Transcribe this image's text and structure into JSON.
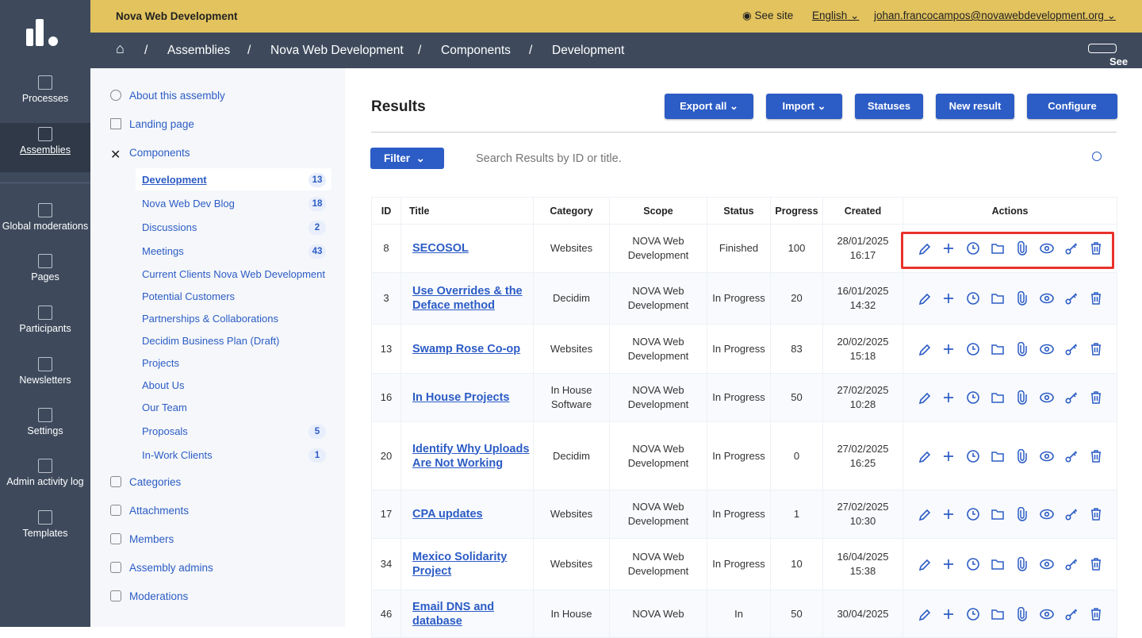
{
  "org": "Nova Web Development",
  "top": {
    "see_site": "See site",
    "language": "English",
    "user": "johan.francocampos@novawebdevelopment.org"
  },
  "breadcrumb": [
    "Assemblies",
    "Nova Web Development",
    "Components",
    "Development"
  ],
  "see_assembly": "See assembly",
  "nav": [
    {
      "label": "Processes"
    },
    {
      "label": "Assemblies",
      "active": true
    },
    {
      "label": "Global moderations"
    },
    {
      "label": "Pages"
    },
    {
      "label": "Participants"
    },
    {
      "label": "Newsletters"
    },
    {
      "label": "Settings"
    },
    {
      "label": "Admin activity log"
    },
    {
      "label": "Templates"
    }
  ],
  "subnav": {
    "about": "About this assembly",
    "landing": "Landing page",
    "components": "Components",
    "component_items": [
      {
        "label": "Development",
        "count": "13",
        "active": true
      },
      {
        "label": "Nova Web Dev Blog",
        "count": "18"
      },
      {
        "label": "Discussions",
        "count": "2"
      },
      {
        "label": "Meetings",
        "count": "43"
      },
      {
        "label": "Current Clients Nova Web Development"
      },
      {
        "label": "Potential Customers"
      },
      {
        "label": "Partnerships & Collaborations"
      },
      {
        "label": "Decidim Business Plan (Draft)"
      },
      {
        "label": "Projects"
      },
      {
        "label": "About Us"
      },
      {
        "label": "Our Team"
      },
      {
        "label": "Proposals",
        "count": "5"
      },
      {
        "label": "In-Work Clients",
        "count": "1"
      }
    ],
    "bottom": [
      "Categories",
      "Attachments",
      "Members",
      "Assembly admins",
      "Moderations"
    ]
  },
  "main": {
    "title": "Results",
    "buttons": [
      "Export all",
      "Import",
      "Statuses",
      "New result",
      "Configure"
    ],
    "filter": "Filter",
    "search_placeholder": "Search Results by ID or title."
  },
  "table": {
    "headers": [
      "ID",
      "Title",
      "Category",
      "Scope",
      "Status",
      "Progress",
      "Created",
      "Actions"
    ],
    "rows": [
      [
        "8",
        "SECOSOL",
        "Websites",
        "NOVA Web Development",
        "Finished",
        "100",
        "28/01/2025 16:17"
      ],
      [
        "3",
        "Use Overrides & the Deface method",
        "Decidim",
        "NOVA Web Development",
        "In Progress",
        "20",
        "16/01/2025 14:32"
      ],
      [
        "13",
        "Swamp Rose Co-op",
        "Websites",
        "NOVA Web Development",
        "In Progress",
        "83",
        "20/02/2025 15:18"
      ],
      [
        "16",
        "In House Projects",
        "In House Software",
        "NOVA Web Development",
        "In Progress",
        "50",
        "27/02/2025 10:28"
      ],
      [
        "20",
        "Identify Why Uploads Are Not Working",
        "Decidim",
        "NOVA Web Development",
        "In Progress",
        "0",
        "27/02/2025 16:25"
      ],
      [
        "17",
        "CPA updates",
        "Websites",
        "NOVA Web Development",
        "In Progress",
        "1",
        "27/02/2025 10:30"
      ],
      [
        "34",
        "Mexico Solidarity Project",
        "Websites",
        "NOVA Web Development",
        "In Progress",
        "10",
        "16/04/2025 15:38"
      ],
      [
        "46",
        "Email DNS and database",
        "In House",
        "NOVA Web",
        "In",
        "50",
        "30/04/2025"
      ]
    ],
    "actions": [
      "pencil-icon",
      "plus-icon",
      "clock-icon",
      "folder-icon",
      "paperclip-icon",
      "eye-icon",
      "key-icon",
      "trash-icon"
    ]
  },
  "colors": {
    "accent": "#2c5cc5",
    "topbar": "#e3c35e",
    "sidebar": "#3e4a5c",
    "highlight": "#e8322a"
  }
}
